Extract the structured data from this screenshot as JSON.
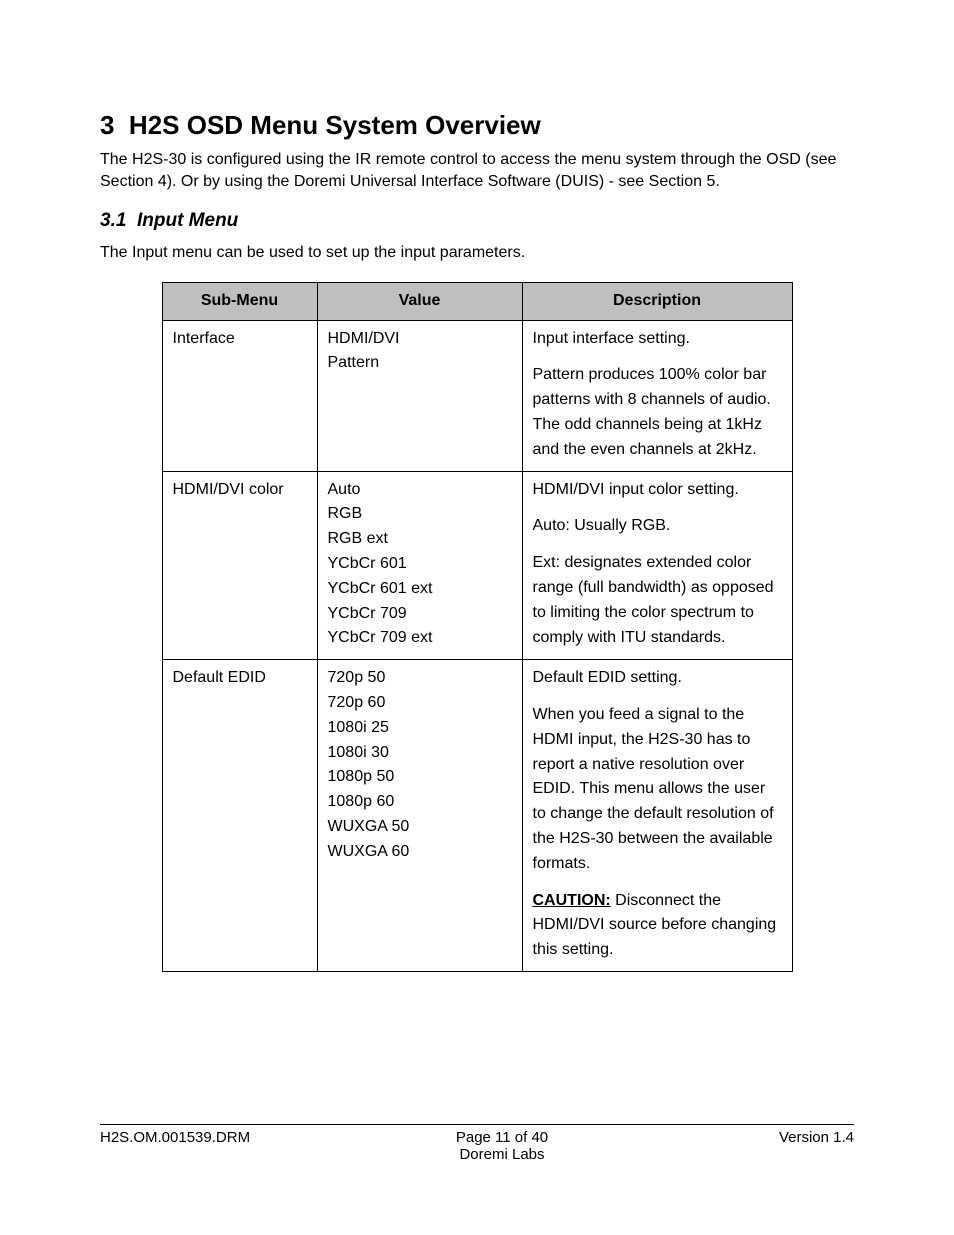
{
  "section": {
    "number": "3",
    "title": "H2S OSD Menu System Overview",
    "intro": "The H2S-30 is configured using the IR remote control to access the menu system through the OSD (see Section 4). Or by using the Doremi Universal Interface Software (DUIS) - see Section 5."
  },
  "subsection": {
    "number": "3.1",
    "title": "Input Menu",
    "intro": "The Input menu can be used to set up the input parameters."
  },
  "table": {
    "headers": {
      "c0": "Sub-Menu",
      "c1": "Value",
      "c2": "Description"
    },
    "header_bg": "#bfbfbf",
    "border_color": "#000000",
    "rows": [
      {
        "submenu": "Interface",
        "values": [
          "HDMI/DVI",
          "Pattern"
        ],
        "desc": [
          {
            "text": "Input interface setting."
          },
          {
            "text": "Pattern produces 100% color bar patterns with 8 channels of audio.  The odd channels being at 1kHz and the even channels at 2kHz."
          }
        ]
      },
      {
        "submenu": "HDMI/DVI color",
        "values": [
          "Auto",
          "RGB",
          "RGB ext",
          "YCbCr 601",
          "YCbCr 601 ext",
          "YCbCr 709",
          "YCbCr 709 ext"
        ],
        "desc": [
          {
            "text": "HDMI/DVI input color setting."
          },
          {
            "text": "Auto: Usually RGB."
          },
          {
            "text": "Ext: designates extended color range (full bandwidth) as opposed to  limiting the color spectrum to comply with ITU standards."
          }
        ]
      },
      {
        "submenu": "Default EDID",
        "values": [
          "720p 50",
          "720p 60",
          "1080i 25",
          "1080i 30",
          "1080p 50",
          "1080p 60",
          "WUXGA 50",
          "WUXGA 60"
        ],
        "desc": [
          {
            "text": "Default EDID setting."
          },
          {
            "text": "When you feed a signal to the HDMI input, the H2S-30 has to report a native resolution over EDID. This menu allows the user to change the default resolution of the  H2S-30 between the available formats."
          },
          {
            "caution_label": "CAUTION:",
            "text": " Disconnect the HDMI/DVI source before changing this setting."
          }
        ]
      }
    ]
  },
  "footer": {
    "doc_id": "H2S.OM.001539.DRM",
    "page_label": "Page 11 of 40",
    "company": "Doremi Labs",
    "version": "Version 1.4"
  }
}
